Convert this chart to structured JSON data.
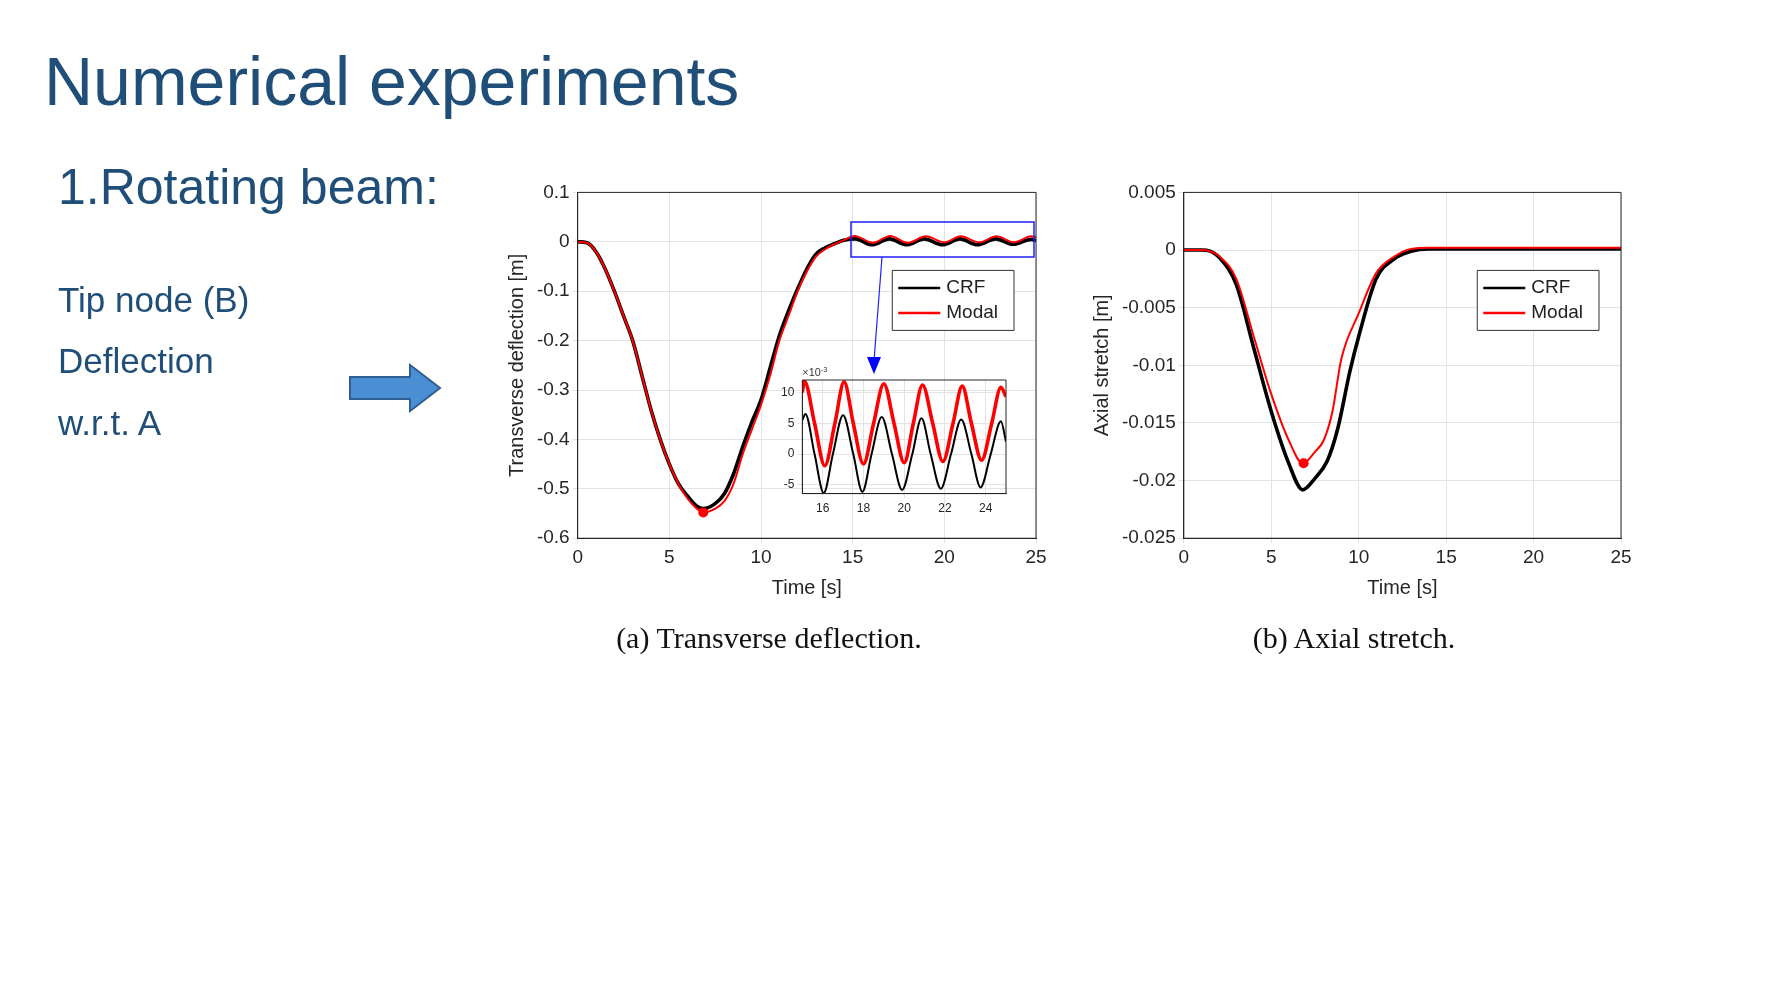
{
  "chart_data": [
    {
      "type": "other",
      "title": "Numerical experiments",
      "annotations": [
        "1.Rotating beam:",
        "Tip node (B)",
        "Deflection",
        "w.r.t. A"
      ]
    },
    {
      "type": "line",
      "title": "(a) Transverse deflection.",
      "xlabel": "Time [s]",
      "ylabel": "Transverse deflection [m]",
      "xlim": [
        0,
        25
      ],
      "xticks": [
        0,
        5,
        10,
        15,
        20,
        25
      ],
      "ylim": [
        -0.6,
        0.1
      ],
      "yticks": [
        -0.6,
        -0.5,
        -0.4,
        -0.3,
        -0.2,
        -0.1,
        0,
        0.1
      ],
      "grid": true,
      "legend": "top right",
      "series": [
        {
          "name": "CRF",
          "color": "#000000",
          "x": [
            0,
            0.5,
            1,
            1.5,
            2,
            2.5,
            3,
            3.5,
            4,
            4.5,
            5,
            5.5,
            6,
            6.5,
            6.85,
            7.5,
            8,
            8.5,
            9,
            9.5,
            10,
            10.5,
            11,
            11.5,
            12,
            12.5,
            13,
            13.5,
            14,
            14.5,
            15.15,
            16.05,
            17,
            17.95,
            18.9,
            19.9,
            20.85,
            21.8,
            22.8,
            23.75,
            24.75,
            25
          ],
          "values": [
            0,
            -0.002,
            -0.02,
            -0.055,
            -0.1,
            -0.15,
            -0.2,
            -0.27,
            -0.34,
            -0.4,
            -0.45,
            -0.49,
            -0.515,
            -0.535,
            -0.54,
            -0.53,
            -0.51,
            -0.47,
            -0.415,
            -0.365,
            -0.32,
            -0.255,
            -0.19,
            -0.14,
            -0.095,
            -0.055,
            -0.025,
            -0.012,
            -0.004,
            0.003,
            0.006,
            -0.006,
            0.006,
            -0.006,
            0.006,
            -0.006,
            0.006,
            -0.006,
            0.006,
            -0.005,
            0.005,
            0.002
          ]
        },
        {
          "name": "Modal",
          "color": "#ff0000",
          "x": [
            0,
            0.5,
            1,
            1.5,
            2,
            2.5,
            3,
            3.5,
            4,
            4.5,
            5,
            5.5,
            6,
            6.5,
            6.85,
            7.5,
            8,
            8.5,
            9,
            9.5,
            10,
            10.5,
            11,
            11.5,
            12,
            12.5,
            13,
            13.5,
            14,
            14.5,
            15.1,
            16.1,
            17.05,
            18,
            19,
            20,
            20.9,
            21.9,
            22.85,
            23.8,
            24.75,
            25
          ],
          "values": [
            0,
            -0.002,
            -0.02,
            -0.055,
            -0.1,
            -0.15,
            -0.2,
            -0.27,
            -0.34,
            -0.4,
            -0.45,
            -0.49,
            -0.52,
            -0.54,
            -0.548,
            -0.54,
            -0.525,
            -0.49,
            -0.43,
            -0.38,
            -0.33,
            -0.27,
            -0.2,
            -0.15,
            -0.1,
            -0.06,
            -0.03,
            -0.015,
            -0.005,
            0.003,
            0.012,
            -0.002,
            0.012,
            -0.002,
            0.011,
            -0.001,
            0.011,
            -0.001,
            0.011,
            -0.001,
            0.011,
            0.009
          ]
        },
        {
          "type": "scatter",
          "color": "#ff0000",
          "marker": "circle",
          "x": [
            6.85
          ],
          "values": [
            -0.548
          ]
        }
      ]
    },
    {
      "type": "line",
      "annotations": [
        "×10$^{-3}$"
      ],
      "xlim": [
        15,
        25
      ],
      "xticks": [
        16,
        18,
        20,
        22,
        24
      ],
      "ylim": [
        -6.4,
        12
      ],
      "yticks": [
        -5,
        0,
        5,
        10
      ],
      "grid": true,
      "series": [
        {
          "color": "#ff0000",
          "x": [
            15,
            15.1,
            15.6,
            16.1,
            16.6,
            17.05,
            17.5,
            18,
            18.5,
            19,
            19.5,
            20,
            20.45,
            20.9,
            21.4,
            21.9,
            22.4,
            22.85,
            23.3,
            23.8,
            24.3,
            24.75,
            25
          ],
          "values": [
            10,
            11.8,
            5,
            -1.9,
            5,
            11.7,
            5,
            -1.6,
            5,
            11.4,
            5,
            -1.4,
            5,
            11.2,
            5,
            -1.2,
            5,
            11,
            5,
            -1,
            5,
            10.8,
            9.3
          ]
        },
        {
          "color": "#000000",
          "x": [
            15,
            15.15,
            15.6,
            16.05,
            16.5,
            17,
            17.5,
            17.95,
            18.4,
            18.9,
            19.4,
            19.9,
            20.4,
            20.85,
            21.3,
            21.8,
            22.3,
            22.8,
            23.3,
            23.75,
            24.25,
            24.75,
            25
          ],
          "values": [
            5.5,
            6.5,
            0,
            -6.3,
            0,
            6.3,
            0,
            -6.1,
            0,
            6,
            0,
            -5.8,
            0,
            5.8,
            0,
            -5.6,
            0,
            5.6,
            0,
            -5.4,
            0,
            5.3,
            2
          ]
        }
      ]
    },
    {
      "type": "line",
      "title": "(b) Axial stretch.",
      "xlabel": "Time [s]",
      "ylabel": "Axial stretch [m]",
      "xlim": [
        0,
        25
      ],
      "xticks": [
        0,
        5,
        10,
        15,
        20,
        25
      ],
      "ylim": [
        -0.025,
        0.005
      ],
      "yticks": [
        -0.025,
        -0.02,
        -0.015,
        -0.01,
        -0.005,
        0,
        0.005
      ],
      "grid": true,
      "legend": "top right",
      "series": [
        {
          "name": "CRF",
          "color": "#000000",
          "x": [
            0,
            1,
            1.5,
            2,
            3,
            4,
            5,
            6,
            6.8,
            7.5,
            8.2,
            8.8,
            9.5,
            10,
            11,
            12,
            13,
            14,
            25
          ],
          "values": [
            0,
            0,
            -0.0001,
            -0.0006,
            -0.003,
            -0.0085,
            -0.014,
            -0.0185,
            -0.0208,
            -0.0198,
            -0.0183,
            -0.0155,
            -0.0105,
            -0.0075,
            -0.0025,
            -0.0008,
            -0.0001,
            0.0001,
            0.0001
          ]
        },
        {
          "name": "Modal",
          "color": "#ff0000",
          "x": [
            0,
            1,
            1.5,
            2,
            3,
            4,
            5,
            6,
            6.8,
            7.5,
            8,
            8.5,
            9,
            10,
            11,
            12,
            13,
            14,
            25
          ],
          "values": [
            0,
            0,
            -0.0001,
            -0.0005,
            -0.0025,
            -0.0075,
            -0.0125,
            -0.0165,
            -0.0185,
            -0.0175,
            -0.0165,
            -0.014,
            -0.0095,
            -0.0055,
            -0.002,
            -0.0006,
            0.0001,
            0.0002,
            0.0002
          ]
        },
        {
          "type": "scatter",
          "color": "#ff0000",
          "marker": "circle",
          "x": [
            6.85
          ],
          "values": [
            -0.0185
          ]
        }
      ]
    }
  ]
}
